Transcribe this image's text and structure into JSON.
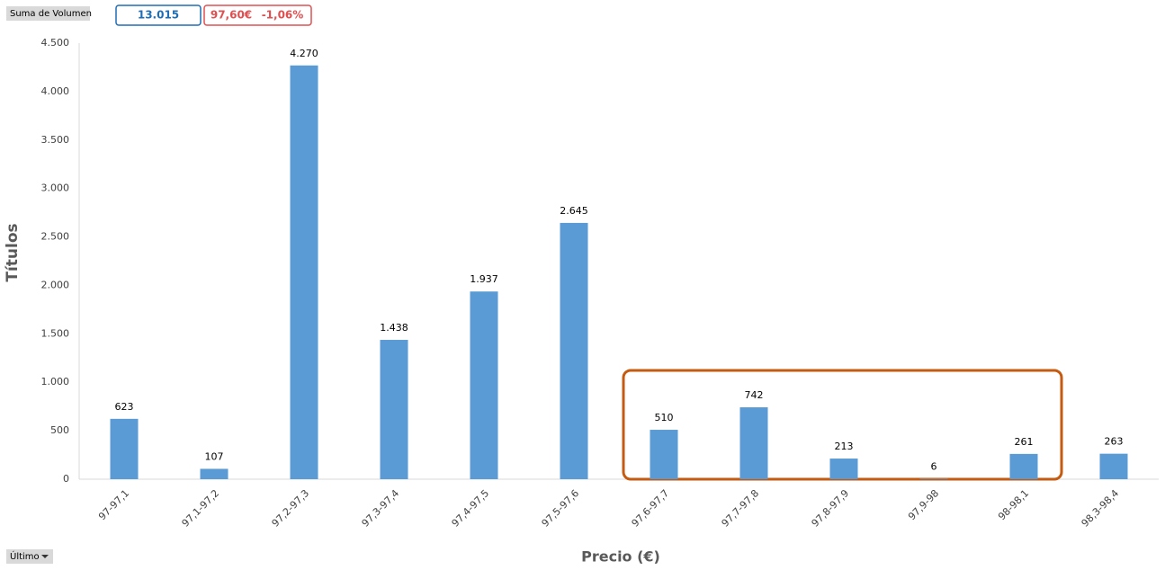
{
  "chart_data": {
    "type": "bar",
    "field_button": "Suma de Volumen",
    "filter_button": "Último",
    "total_box": "13.015",
    "price_box": "97,60€",
    "change_box": "-1,06%",
    "ylabel": "Títulos",
    "xlabel": "Precio (€)",
    "categories": [
      "97-97,1",
      "97,1-97,2",
      "97,2-97,3",
      "97,3-97,4",
      "97,4-97,5",
      "97,5-97,6",
      "97,6-97,7",
      "97,7-97,8",
      "97,8-97,9",
      "97,9-98",
      "98-98,1",
      "98,3-98,4"
    ],
    "values": [
      623,
      107,
      4270,
      1438,
      1937,
      2645,
      510,
      742,
      213,
      6,
      261,
      263
    ],
    "value_labels": [
      "623",
      "107",
      "4.270",
      "1.438",
      "1.937",
      "2.645",
      "510",
      "742",
      "213",
      "6",
      "261",
      "263"
    ],
    "color": "#5b9bd5",
    "ylim": [
      0,
      4500
    ],
    "yticks": [
      0,
      500,
      {
        "value": 1000,
        "label": "1.000"
      },
      {
        "value": 1500,
        "label": "1.500"
      },
      {
        "value": 2000,
        "label": "2.000"
      },
      {
        "value": 2500,
        "label": "2.500"
      },
      {
        "value": 3000,
        "label": "3.000"
      },
      {
        "value": 3500,
        "label": "3.500"
      },
      {
        "value": 4000,
        "label": "4.000"
      },
      {
        "value": 4500,
        "label": "4.500"
      }
    ],
    "grid": false
  }
}
